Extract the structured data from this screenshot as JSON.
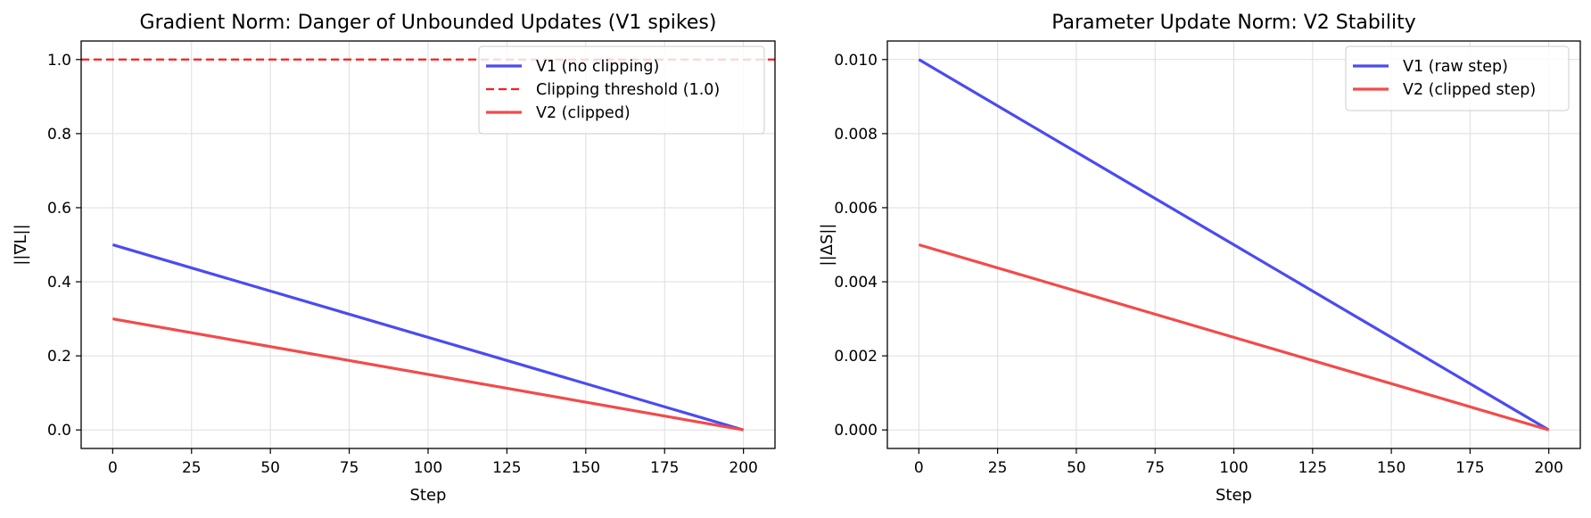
{
  "chart_data": [
    {
      "type": "line",
      "title": "Gradient Norm: Danger of Unbounded Updates (V1 spikes)",
      "xlabel": "Step",
      "ylabel": "||∇L||",
      "xlim": [
        -10,
        210
      ],
      "ylim": [
        -0.05,
        1.05
      ],
      "xticks": [
        0,
        25,
        50,
        75,
        100,
        125,
        150,
        175,
        200
      ],
      "yticks": [
        0.0,
        0.2,
        0.4,
        0.6,
        0.8,
        1.0
      ],
      "ytick_labels": [
        "0.0",
        "0.2",
        "0.4",
        "0.6",
        "0.8",
        "1.0"
      ],
      "grid": true,
      "legend_position": "top-right",
      "series": [
        {
          "name": "V1 (no clipping)",
          "x": [
            0,
            200
          ],
          "y": [
            0.5,
            0.0
          ],
          "color": "#4b4bf2",
          "style": "solid"
        },
        {
          "name": "Clipping threshold (1.0)",
          "hline": 1.0,
          "color": "#ff1a1a",
          "style": "dashed"
        },
        {
          "name": "V2 (clipped)",
          "x": [
            0,
            200
          ],
          "y": [
            0.3,
            0.0
          ],
          "color": "#f24b4b",
          "style": "solid"
        }
      ]
    },
    {
      "type": "line",
      "title": "Parameter Update Norm: V2 Stability",
      "xlabel": "Step",
      "ylabel": "||ΔS||",
      "xlim": [
        -10,
        210
      ],
      "ylim": [
        -0.0005,
        0.0105
      ],
      "xticks": [
        0,
        25,
        50,
        75,
        100,
        125,
        150,
        175,
        200
      ],
      "yticks": [
        0.0,
        0.002,
        0.004,
        0.006,
        0.008,
        0.01
      ],
      "ytick_labels": [
        "0.000",
        "0.002",
        "0.004",
        "0.006",
        "0.008",
        "0.010"
      ],
      "grid": true,
      "legend_position": "top-right",
      "series": [
        {
          "name": "V1 (raw step)",
          "x": [
            0,
            200
          ],
          "y": [
            0.01,
            0.0
          ],
          "color": "#4b4bf2",
          "style": "solid"
        },
        {
          "name": "V2 (clipped step)",
          "x": [
            0,
            200
          ],
          "y": [
            0.005,
            0.0
          ],
          "color": "#f24b4b",
          "style": "solid"
        }
      ]
    }
  ]
}
